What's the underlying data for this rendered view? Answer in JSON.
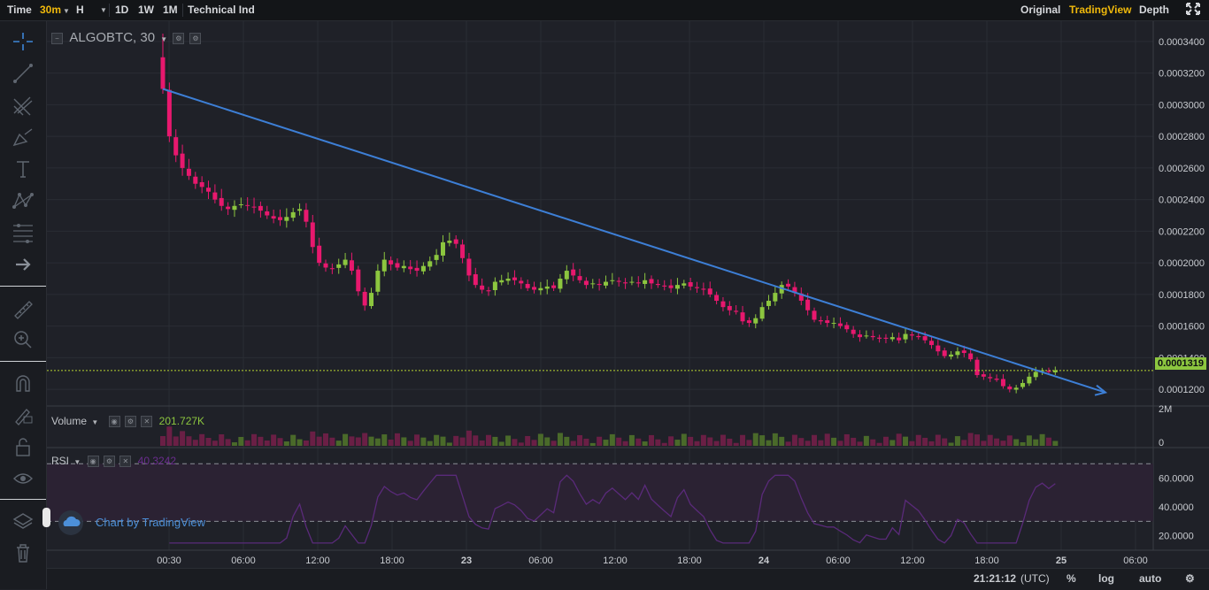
{
  "toolbar": {
    "time_label": "Time",
    "interval": "30m",
    "chart_style": "H",
    "periods": [
      "1D",
      "1W",
      "1M"
    ],
    "indicator_label": "Technical Ind",
    "views": [
      "Original",
      "TradingView",
      "Depth"
    ],
    "active_view": "TradingView"
  },
  "left_tools": [
    "crosshair-icon",
    "trendline-icon",
    "pitchfork-icon",
    "brush-icon",
    "text-icon",
    "pattern-icon",
    "fib-icon",
    "arrow-icon",
    "ruler-icon",
    "zoom-icon",
    "magnet-icon",
    "lock-drawing-icon",
    "lock-icon",
    "eye-icon",
    "layers-icon",
    "trash-icon"
  ],
  "symbol_title": "ALGOBTC, 30",
  "volume": {
    "label": "Volume",
    "value": "201.727K"
  },
  "rsi": {
    "label": "RSI",
    "value": "40.3242"
  },
  "watermark": "Chart by TradingView",
  "status": {
    "time": "21:21:12",
    "tz": "(UTC)",
    "percent": "%",
    "log": "log",
    "auto": "auto"
  },
  "colors": {
    "up": "#8cc63f",
    "down": "#e8186e",
    "trendline": "#3d7fd6",
    "rsi_line": "#5a2a7a",
    "last_price_line": "#b8d430"
  },
  "chart_data": {
    "type": "candlestick",
    "symbol": "ALGOBTC",
    "interval": "30",
    "last_price": "0.0001319",
    "y_ticks": [
      "0.0001200",
      "0.0001400",
      "0.0001600",
      "0.0001800",
      "0.0002000",
      "0.0002200",
      "0.0002400",
      "0.0002600",
      "0.0002800",
      "0.0003000",
      "0.0003200",
      "0.0003400"
    ],
    "x_ticks": [
      "00:30",
      "06:00",
      "12:00",
      "18:00",
      "23",
      "06:00",
      "12:00",
      "18:00",
      "24",
      "06:00",
      "12:00",
      "18:00",
      "25",
      "06:00"
    ],
    "close_series": [
      0.00031,
      0.00028,
      0.000268,
      0.00026,
      0.000255,
      0.00025,
      0.000248,
      0.000245,
      0.00024,
      0.000236,
      0.000234,
      0.000236,
      0.000237,
      0.000236,
      0.000235,
      0.000233,
      0.00023,
      0.000228,
      0.000227,
      0.000229,
      0.000232,
      0.000234,
      0.000226,
      0.00021,
      0.0002,
      0.000197,
      0.000196,
      0.000199,
      0.000202,
      0.000195,
      0.000182,
      0.000173,
      0.000181,
      0.000195,
      0.000202,
      0.000199,
      0.000197,
      0.000198,
      0.000196,
      0.000195,
      0.000198,
      0.000201,
      0.000205,
      0.000213,
      0.000214,
      0.000212,
      0.000203,
      0.000192,
      0.000186,
      0.000183,
      0.000182,
      0.000188,
      0.000189,
      0.00019,
      0.000189,
      0.000187,
      0.000184,
      0.000183,
      0.000184,
      0.000185,
      0.000184,
      0.00019,
      0.000195,
      0.000192,
      0.000189,
      0.000186,
      0.000187,
      0.000186,
      0.000188,
      0.000189,
      0.000188,
      0.000187,
      0.000188,
      0.000187,
      0.000189,
      0.000187,
      0.000186,
      0.000185,
      0.000184,
      0.000186,
      0.000187,
      0.000185,
      0.000184,
      0.000183,
      0.00018,
      0.000176,
      0.000172,
      0.00017,
      0.000169,
      0.000163,
      0.000162,
      0.000165,
      0.000172,
      0.000176,
      0.000181,
      0.000186,
      0.000185,
      0.000181,
      0.000176,
      0.00017,
      0.000164,
      0.000163,
      0.000162,
      0.000162,
      0.00016,
      0.000158,
      0.000155,
      0.000153,
      0.000154,
      0.000153,
      0.000152,
      0.000152,
      0.000153,
      0.000151,
      0.000155,
      0.000154,
      0.000153,
      0.000151,
      0.000148,
      0.000144,
      0.000141,
      0.000142,
      0.000144,
      0.000143,
      0.000139,
      0.000129,
      0.000128,
      0.000127,
      0.000126,
      0.000122,
      0.00012,
      0.000121,
      0.000124,
      0.000128,
      0.000131,
      0.000132,
      0.000131,
      0.000132
    ],
    "trendline": {
      "start": [
        "00:30 (22)",
        0.00031
      ],
      "end": [
        "~03:00 (25)",
        0.000118
      ]
    },
    "volume_ticks": [
      "2M",
      "0"
    ],
    "rsi_ticks": [
      "20.0000",
      "40.0000",
      "60.0000"
    ],
    "rsi_bands": [
      30,
      70
    ]
  }
}
